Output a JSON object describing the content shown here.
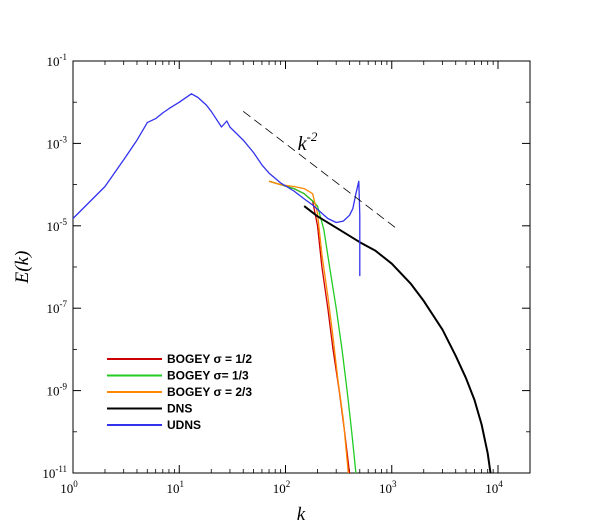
{
  "chart_data": {
    "type": "line",
    "title": "",
    "xlabel": "k",
    "ylabel": "E(k)",
    "xscale": "log",
    "yscale": "log",
    "xlim": [
      1,
      20000
    ],
    "ylim": [
      1e-11,
      0.1
    ],
    "x_ticks": [
      {
        "value": 1,
        "base": "10",
        "exp": "0"
      },
      {
        "value": 10,
        "base": "10",
        "exp": "1"
      },
      {
        "value": 100,
        "base": "10",
        "exp": "2"
      },
      {
        "value": 1000,
        "base": "10",
        "exp": "3"
      },
      {
        "value": 10000,
        "base": "10",
        "exp": "4"
      }
    ],
    "y_ticks": [
      {
        "value": 1e-11,
        "base": "10",
        "exp": "-11"
      },
      {
        "value": 1e-09,
        "base": "10",
        "exp": "-9"
      },
      {
        "value": 1e-07,
        "base": "10",
        "exp": "-7"
      },
      {
        "value": 1e-05,
        "base": "10",
        "exp": "-5"
      },
      {
        "value": 0.001,
        "base": "10",
        "exp": "-3"
      },
      {
        "value": 0.1,
        "base": "10",
        "exp": "-1"
      }
    ],
    "grid": false,
    "legend_position": "bottom-left",
    "annotation": {
      "text_base": "k",
      "text_exp": "-2",
      "line": {
        "x": [
          40,
          1100
        ],
        "y": [
          0.006,
          8.76e-06
        ]
      },
      "text_at": {
        "x": 130,
        "y": 0.0007
      }
    },
    "series": [
      {
        "name": "BOGEY σ = 1/2",
        "color": "#cc0000",
        "x": [
          70,
          90,
          120,
          150,
          180,
          200,
          220,
          250,
          280,
          320,
          360,
          400
        ],
        "y": [
          0.00012,
          0.0001,
          8e-05,
          6e-05,
          4e-05,
          1e-05,
          1e-06,
          1e-07,
          1e-08,
          1e-09,
          1e-10,
          1e-11
        ]
      },
      {
        "name": "BOGEY σ= 1/3",
        "color": "#22cc22",
        "x": [
          70,
          90,
          120,
          150,
          180,
          200,
          230,
          260,
          300,
          340,
          380,
          420,
          460
        ],
        "y": [
          0.00012,
          0.0001,
          8e-05,
          6e-05,
          4e-05,
          3e-05,
          8e-06,
          1e-06,
          1e-07,
          1e-08,
          1e-09,
          1e-10,
          1e-11
        ]
      },
      {
        "name": "BOGEY σ = 2/3",
        "color": "#ff8800",
        "x": [
          70,
          90,
          120,
          150,
          180,
          200,
          220,
          250,
          280,
          310,
          350,
          390
        ],
        "y": [
          0.00012,
          0.0001,
          9e-05,
          8e-05,
          6e-05,
          2e-05,
          2e-06,
          2e-07,
          2e-08,
          2e-09,
          2e-10,
          1e-11
        ]
      },
      {
        "name": "DNS",
        "color": "#000000",
        "x": [
          150,
          200,
          300,
          500,
          700,
          1000,
          1500,
          2000,
          3000,
          4000,
          5000,
          6000,
          7000,
          8000,
          8500
        ],
        "y": [
          3e-05,
          1.7e-05,
          9e-06,
          4e-06,
          2.5e-06,
          1.2e-06,
          4e-07,
          1.5e-07,
          3e-08,
          7e-09,
          2e-09,
          6e-10,
          1.5e-10,
          3e-11,
          1e-11
        ]
      },
      {
        "name": "UDNS",
        "color": "#3333ee",
        "x": [
          1,
          2,
          3,
          4,
          5,
          6,
          7,
          8,
          10,
          13,
          15,
          18,
          20,
          25,
          28,
          30,
          40,
          50,
          60,
          70,
          90,
          120,
          150,
          180,
          200,
          250,
          300,
          350,
          400,
          430,
          460,
          490,
          500,
          500
        ],
        "y": [
          1.5e-05,
          9e-05,
          0.0004,
          0.0012,
          0.0032,
          0.004,
          0.0055,
          0.007,
          0.01,
          0.016,
          0.013,
          0.0085,
          0.006,
          0.0025,
          0.0035,
          0.0025,
          0.0012,
          0.0006,
          0.0003,
          0.00019,
          0.00011,
          7e-05,
          4.5e-05,
          3.2e-05,
          2.5e-05,
          1.5e-05,
          1.2e-05,
          1.3e-05,
          1.8e-05,
          2.6e-05,
          6e-05,
          0.00012,
          1.8e-05,
          6e-07
        ]
      }
    ]
  }
}
